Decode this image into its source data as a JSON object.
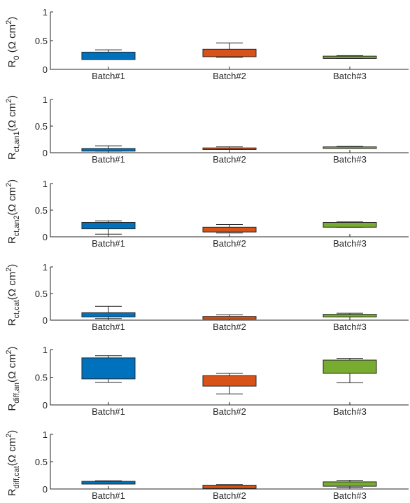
{
  "chart_data": [
    {
      "type": "box",
      "ylabel": {
        "main": "R",
        "sub": "0",
        "unit": " (Ω cm",
        "sup": "2",
        "close": ")"
      },
      "categories": [
        "Batch#1",
        "Batch#2",
        "Batch#3"
      ],
      "ylim": [
        0,
        1
      ],
      "yticks": [
        "0",
        "0.5",
        "1"
      ],
      "boxes": [
        {
          "min": 0.17,
          "q1": 0.17,
          "q3": 0.3,
          "max": 0.34,
          "color": "#0072BD"
        },
        {
          "min": 0.21,
          "q1": 0.22,
          "q3": 0.35,
          "max": 0.46,
          "color": "#D95319"
        },
        {
          "min": 0.19,
          "q1": 0.19,
          "q3": 0.23,
          "max": 0.24,
          "color": "#77AC30"
        }
      ]
    },
    {
      "type": "box",
      "ylabel": {
        "main": "R",
        "sub": "ct,an1",
        "unit": "(Ω cm",
        "sup": "2",
        "close": ")"
      },
      "categories": [
        "Batch#1",
        "Batch#2",
        "Batch#3"
      ],
      "ylim": [
        0,
        1
      ],
      "yticks": [
        "0",
        "0.5",
        "1"
      ],
      "boxes": [
        {
          "min": 0.03,
          "q1": 0.03,
          "q3": 0.08,
          "max": 0.13,
          "color": "#0072BD"
        },
        {
          "min": 0.06,
          "q1": 0.06,
          "q3": 0.09,
          "max": 0.11,
          "color": "#D95319"
        },
        {
          "min": 0.08,
          "q1": 0.08,
          "q3": 0.11,
          "max": 0.12,
          "color": "#77AC30"
        }
      ]
    },
    {
      "type": "box",
      "ylabel": {
        "main": "R",
        "sub": "ct,an2",
        "unit": "(Ω cm",
        "sup": "2",
        "close": ")"
      },
      "categories": [
        "Batch#1",
        "Batch#2",
        "Batch#3"
      ],
      "ylim": [
        0,
        1
      ],
      "yticks": [
        "0",
        "0.5",
        "1"
      ],
      "boxes": [
        {
          "min": 0.05,
          "q1": 0.15,
          "q3": 0.27,
          "max": 0.3,
          "color": "#0072BD"
        },
        {
          "min": 0.07,
          "q1": 0.09,
          "q3": 0.18,
          "max": 0.23,
          "color": "#D95319"
        },
        {
          "min": 0.18,
          "q1": 0.18,
          "q3": 0.27,
          "max": 0.28,
          "color": "#77AC30"
        }
      ]
    },
    {
      "type": "box",
      "ylabel": {
        "main": "R",
        "sub": "ct,cat",
        "unit": "(Ω cm",
        "sup": "2",
        "close": ")"
      },
      "categories": [
        "Batch#1",
        "Batch#2",
        "Batch#3"
      ],
      "ylim": [
        0,
        1
      ],
      "yticks": [
        "0",
        "0.5",
        "1"
      ],
      "boxes": [
        {
          "min": 0.03,
          "q1": 0.06,
          "q3": 0.14,
          "max": 0.26,
          "color": "#0072BD"
        },
        {
          "min": 0.02,
          "q1": 0.02,
          "q3": 0.07,
          "max": 0.1,
          "color": "#D95319"
        },
        {
          "min": 0.06,
          "q1": 0.06,
          "q3": 0.11,
          "max": 0.13,
          "color": "#77AC30"
        }
      ]
    },
    {
      "type": "box",
      "ylabel": {
        "main": "R",
        "sub": "diff,an",
        "unit": "(Ω cm",
        "sup": "2",
        "close": ")"
      },
      "categories": [
        "Batch#1",
        "Batch#2",
        "Batch#3"
      ],
      "ylim": [
        0,
        1
      ],
      "yticks": [
        "0",
        "0.5",
        "1"
      ],
      "boxes": [
        {
          "min": 0.41,
          "q1": 0.47,
          "q3": 0.85,
          "max": 0.89,
          "color": "#0072BD"
        },
        {
          "min": 0.2,
          "q1": 0.34,
          "q3": 0.53,
          "max": 0.57,
          "color": "#D95319"
        },
        {
          "min": 0.4,
          "q1": 0.57,
          "q3": 0.81,
          "max": 0.84,
          "color": "#77AC30"
        }
      ]
    },
    {
      "type": "box",
      "ylabel": {
        "main": "R",
        "sub": "diff,cat",
        "unit": "(Ω cm",
        "sup": "2",
        "close": ")"
      },
      "categories": [
        "Batch#1",
        "Batch#2",
        "Batch#3"
      ],
      "ylim": [
        0,
        1
      ],
      "yticks": [
        "0",
        "0.5",
        "1"
      ],
      "boxes": [
        {
          "min": 0.09,
          "q1": 0.09,
          "q3": 0.14,
          "max": 0.15,
          "color": "#0072BD"
        },
        {
          "min": 0.01,
          "q1": 0.01,
          "q3": 0.07,
          "max": 0.08,
          "color": "#D95319"
        },
        {
          "min": 0.03,
          "q1": 0.05,
          "q3": 0.13,
          "max": 0.16,
          "color": "#77AC30"
        }
      ]
    }
  ]
}
